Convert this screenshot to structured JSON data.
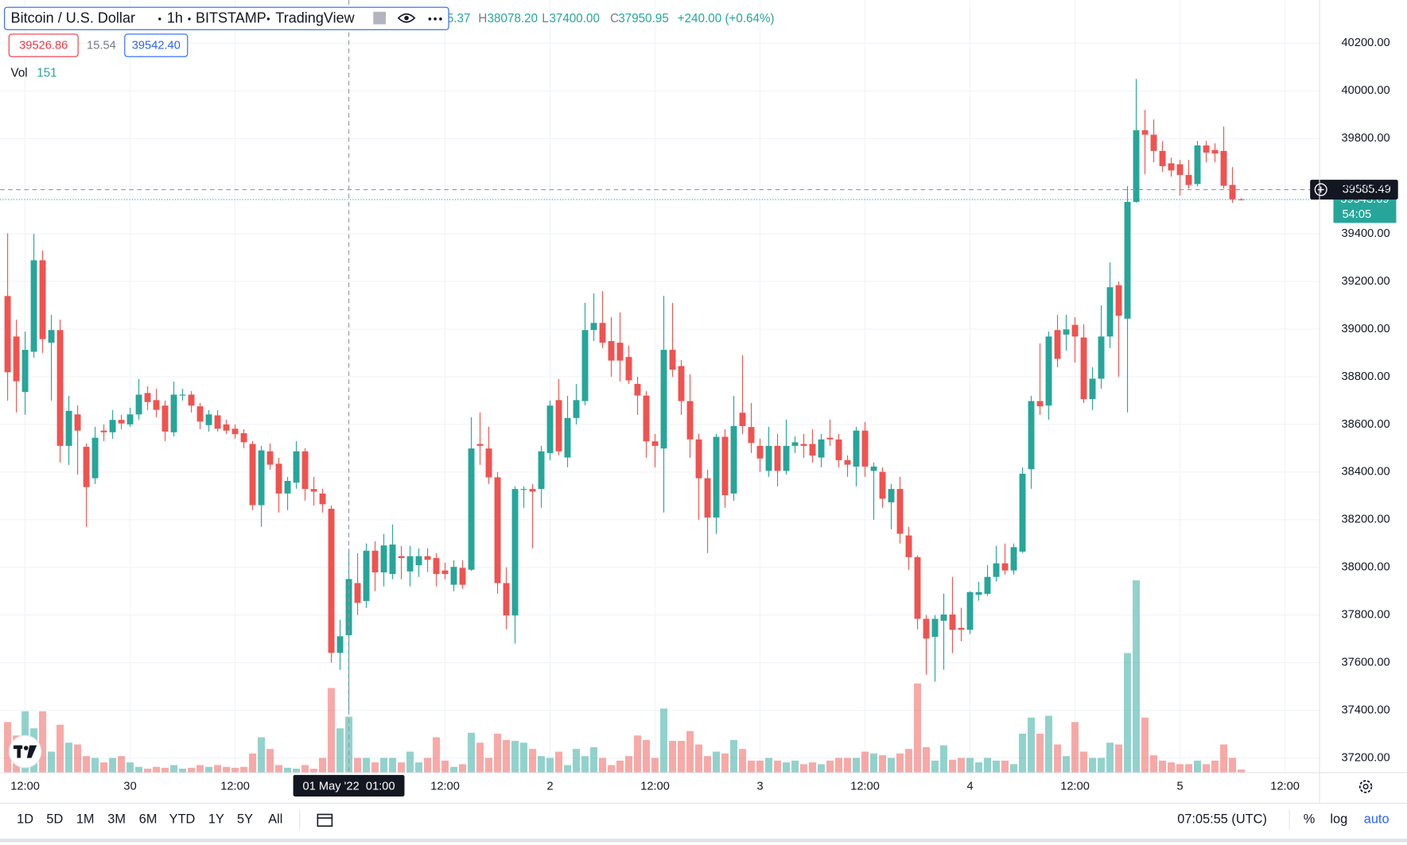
{
  "header": {
    "title": "Bitcoin / U.S. Dollar",
    "interval": "1h",
    "exchange": "BITSTAMP",
    "source": "TradingView",
    "legend": {
      "open_tail": "5.37",
      "high_key": "H",
      "high": "38078.20",
      "low_key": "L",
      "low": "37400.00",
      "close_key": "C",
      "close": "37950.95",
      "change": "+240.00 (+0.64%)"
    },
    "bid": "39526.86",
    "spread": "15.54",
    "ask": "39542.40"
  },
  "toolbar": {
    "ranges": [
      "1D",
      "5D",
      "1M",
      "3M",
      "6M",
      "YTD",
      "1Y",
      "5Y",
      "All"
    ],
    "clock": "07:05:55 (UTC)",
    "percent": "%",
    "log": "log",
    "auto": "auto"
  },
  "chart_data": {
    "type": "candlestick",
    "categories": [
      null,
      null,
      "12:00",
      null,
      null,
      null,
      null,
      null,
      null,
      null,
      null,
      null,
      null,
      null,
      "30",
      null,
      null,
      null,
      null,
      null,
      null,
      null,
      null,
      null,
      null,
      null,
      "12:00",
      null,
      null,
      null,
      null,
      null,
      null,
      null,
      null,
      null,
      null,
      null,
      null,
      "01 May '22  01:00",
      null,
      null,
      null,
      null,
      null,
      null,
      null,
      null,
      null,
      null,
      "12:00",
      null,
      null,
      null,
      null,
      null,
      null,
      null,
      null,
      null,
      null,
      null,
      "2",
      null,
      null,
      null,
      null,
      null,
      null,
      null,
      null,
      null,
      null,
      null,
      "12:00",
      null,
      null,
      null,
      null,
      null,
      null,
      null,
      null,
      null,
      null,
      null,
      "3",
      null,
      null,
      null,
      null,
      null,
      null,
      null,
      null,
      null,
      null,
      null,
      "12:00",
      null,
      null,
      null,
      null,
      null,
      null,
      null,
      null,
      null,
      null,
      null,
      "4",
      null,
      null,
      null,
      null,
      null,
      null,
      null,
      null,
      null,
      null,
      null,
      "12:00",
      null,
      null,
      null,
      null,
      null,
      null,
      null,
      null,
      null,
      null,
      null,
      "5",
      null,
      null,
      null,
      null,
      null,
      null,
      null,
      null,
      null,
      null,
      null,
      "12:00"
    ],
    "open": [
      39139,
      38969,
      38736,
      38905,
      39289,
      38943,
      38996,
      38510,
      38642,
      38506,
      38374,
      38574,
      38567,
      38619,
      38600,
      38642,
      38732,
      38702,
      38679,
      38567,
      38721,
      38725,
      38676,
      38597,
      38638,
      38600,
      38582,
      38563,
      38518,
      38261,
      38487,
      38435,
      38310,
      38356,
      38487,
      38329,
      38310,
      38246,
      37641,
      37715.37,
      37934,
      37859,
      38070,
      37979,
      37972,
      38047,
      37983,
      38009,
      38047,
      38039,
      37987,
      37927,
      37998,
      37990,
      38518,
      38499,
      38378,
      37934,
      37798,
      38325,
      38329,
      38329,
      38480,
      38702,
      38461,
      38627,
      38698,
      38996,
      39026,
      38950,
      38943,
      38883,
      38770,
      38721,
      38529,
      38499,
      38913,
      38845,
      38698,
      38537,
      38374,
      38209,
      38548,
      38310,
      38649,
      38589,
      38510,
      38405,
      38510,
      38405,
      38510,
      38518,
      38518,
      38461,
      38544,
      38537,
      38450,
      38423,
      38574,
      38405,
      38401,
      38273,
      38329,
      38134,
      38043,
      37784,
      37708,
      37776,
      37802,
      37746,
      37738,
      37885,
      37889,
      37960,
      38017,
      37987,
      38066,
      38412,
      38698,
      38679,
      38996,
      38977,
      39018,
      38965,
      38706,
      38792,
      38969,
      39184,
      39044,
      39534,
      39835,
      39816,
      39748,
      39696,
      39692,
      39647,
      39609,
      39771,
      39752,
      39748,
      39605,
      39545,
      null,
      null,
      null,
      null,
      null
    ],
    "high": [
      39402,
      39040,
      38990,
      39400,
      39330,
      39060,
      39040,
      38720,
      38680,
      38520,
      38590,
      38600,
      38660,
      38640,
      38670,
      38790,
      38760,
      38750,
      38700,
      38780,
      38750,
      38740,
      38690,
      38660,
      38660,
      38620,
      38600,
      38580,
      38530,
      38510,
      38520,
      38460,
      38380,
      38530,
      38500,
      38380,
      38330,
      38260,
      37780,
      38078.2,
      38060,
      38100,
      38110,
      38140,
      38180,
      38090,
      38090,
      38080,
      38080,
      38060,
      38020,
      38030,
      38030,
      38630,
      38650,
      38590,
      38400,
      38000,
      38340,
      38340,
      38350,
      38510,
      38700,
      38790,
      38720,
      38770,
      39110,
      39150,
      39160,
      39050,
      39070,
      38930,
      38800,
      38740,
      38560,
      39140,
      39110,
      38870,
      38810,
      38560,
      38410,
      38560,
      38580,
      38720,
      38890,
      38690,
      38540,
      38590,
      38560,
      38620,
      38550,
      38560,
      38580,
      38560,
      38620,
      38560,
      38470,
      38590,
      38610,
      38440,
      38420,
      38350,
      38380,
      38170,
      38050,
      37800,
      37800,
      37890,
      37960,
      37830,
      37900,
      37940,
      38010,
      38090,
      38100,
      38100,
      38420,
      38720,
      38940,
      38990,
      39060,
      39060,
      39050,
      39020,
      38840,
      39100,
      39280,
      39200,
      39600,
      40050,
      39920,
      39880,
      39790,
      39720,
      39710,
      39710,
      39790,
      39790,
      39780,
      39850,
      39680,
      39550,
      null,
      null,
      null,
      null,
      null
    ],
    "low": [
      38700,
      38650,
      38640,
      38880,
      38900,
      38700,
      38440,
      38430,
      38390,
      38170,
      38350,
      38530,
      38540,
      38580,
      38590,
      38620,
      38660,
      38630,
      38530,
      38550,
      38700,
      38650,
      38580,
      38570,
      38570,
      38560,
      38540,
      38500,
      38240,
      38170,
      38410,
      38230,
      38240,
      38330,
      38280,
      38260,
      38230,
      37600,
      37570,
      37400,
      37800,
      37830,
      37900,
      37920,
      37950,
      37950,
      37920,
      37960,
      37980,
      37920,
      37950,
      37900,
      37910,
      37985,
      38430,
      38350,
      37890,
      37740,
      37680,
      38250,
      38080,
      38250,
      38450,
      38470,
      38420,
      38600,
      38680,
      38950,
      38920,
      38800,
      38780,
      38770,
      38640,
      38460,
      38420,
      38230,
      38800,
      38640,
      38460,
      38200,
      38060,
      38140,
      38250,
      38280,
      38560,
      38480,
      38400,
      38380,
      38340,
      38390,
      38480,
      38460,
      38440,
      38420,
      38510,
      38420,
      38380,
      38340,
      38380,
      38200,
      38250,
      38160,
      38100,
      37990,
      37740,
      37550,
      37520,
      37570,
      37640,
      37690,
      37720,
      37860,
      37880,
      37940,
      37970,
      37970,
      38060,
      38330,
      38640,
      38620,
      38840,
      38910,
      38860,
      38690,
      38660,
      38750,
      38920,
      38800,
      38650,
      39530,
      39650,
      39700,
      39660,
      39640,
      39560,
      39590,
      39600,
      39700,
      39700,
      39590,
      39530,
      39540,
      null,
      null,
      null,
      null,
      null
    ],
    "close": [
      38819,
      38781,
      38913,
      39289,
      38958,
      38996,
      38510,
      38657,
      38574,
      38337,
      38544,
      38567,
      38619,
      38604,
      38642,
      38725,
      38694,
      38661,
      38570,
      38725,
      38725,
      38679,
      38612,
      38642,
      38582,
      38574,
      38559,
      38525,
      38261,
      38491,
      38431,
      38310,
      38363,
      38487,
      38329,
      38318,
      38265,
      37641,
      37710.95,
      37950.95,
      37851,
      38070,
      37979,
      38092,
      38096,
      38039,
      38047,
      38047,
      38032,
      37972,
      37972,
      38002,
      37927,
      38499,
      38510,
      38378,
      37934,
      37798,
      38329,
      38329,
      38318,
      38487,
      38679,
      38487,
      38627,
      38702,
      38996,
      39026,
      38943,
      38868,
      38868,
      38785,
      38721,
      38529,
      38510,
      38913,
      38830,
      38698,
      38537,
      38374,
      38209,
      38548,
      38303,
      38593,
      38593,
      38522,
      38457,
      38510,
      38405,
      38510,
      38525,
      38510,
      38469,
      38537,
      38537,
      38450,
      38431,
      38574,
      38423,
      38423,
      38288,
      38329,
      38141,
      38043,
      37784,
      37701,
      37784,
      37802,
      37738,
      37738,
      37896,
      37896,
      37960,
      38017,
      37987,
      38085,
      38393,
      38698,
      38676,
      38969,
      38875,
      38999,
      38969,
      38706,
      38792,
      38969,
      39176,
      39056,
      39534,
      39835,
      39816,
      39748,
      39684,
      39666,
      39647,
      39605,
      39771,
      39741,
      39737,
      39602,
      39545,
      39543.69,
      null,
      null,
      null,
      null,
      null
    ],
    "volume": [
      2800,
      2050,
      3400,
      2450,
      3400,
      1150,
      2650,
      1650,
      1550,
      900,
      800,
      550,
      800,
      900,
      550,
      300,
      200,
      300,
      250,
      400,
      200,
      250,
      400,
      300,
      400,
      300,
      250,
      300,
      1050,
      1950,
      1300,
      400,
      250,
      200,
      400,
      200,
      800,
      4700,
      2450,
      3100,
      800,
      800,
      550,
      800,
      800,
      550,
      1150,
      550,
      800,
      1950,
      650,
      300,
      450,
      2200,
      1650,
      800,
      2150,
      1800,
      1750,
      1650,
      1300,
      900,
      800,
      1150,
      400,
      1300,
      900,
      1400,
      800,
      400,
      650,
      900,
      2050,
      1800,
      800,
      3550,
      1750,
      1750,
      2300,
      1550,
      900,
      1150,
      1050,
      1800,
      1300,
      650,
      650,
      800,
      650,
      550,
      650,
      450,
      550,
      450,
      650,
      800,
      800,
      800,
      1150,
      1050,
      950,
      800,
      1050,
      1300,
      4950,
      1400,
      650,
      1500,
      700,
      800,
      800,
      550,
      800,
      650,
      650,
      450,
      2150,
      3050,
      2150,
      3150,
      1550,
      900,
      2800,
      1150,
      800,
      800,
      1650,
      1550,
      6650,
      10700,
      3050,
      950,
      650,
      550,
      450,
      450,
      650,
      450,
      650,
      1550,
      800,
      151,
      null,
      null,
      null,
      null,
      null
    ],
    "volume_label": "Vol",
    "up_color": "#26a69a",
    "down_color": "#ef5350",
    "ylim": [
      37140,
      40381
    ],
    "yticks": [
      {
        "value": 37200,
        "label": "37200.00"
      },
      {
        "value": 37400,
        "label": "37400.00"
      },
      {
        "value": 37600,
        "label": "37600.00"
      },
      {
        "value": 37800,
        "label": "37800.00"
      },
      {
        "value": 38000,
        "label": "38000.00"
      },
      {
        "value": 38200,
        "label": "38200.00"
      },
      {
        "value": 38400,
        "label": "38400.00"
      },
      {
        "value": 38600,
        "label": "38600.00"
      },
      {
        "value": 38800,
        "label": "38800.00"
      },
      {
        "value": 39000,
        "label": "39000.00"
      },
      {
        "value": 39200,
        "label": "39200.00"
      },
      {
        "value": 39400,
        "label": "39400.00"
      },
      {
        "value": 39600,
        "label": "39600.00"
      },
      {
        "value": 39800,
        "label": "39800.00"
      },
      {
        "value": 40000,
        "label": "40000.00"
      },
      {
        "value": 40200,
        "label": "40200.00"
      }
    ],
    "vlim": [
      0,
      11500
    ],
    "grid": true,
    "crosshair": {
      "x": "01 May '22  01:00",
      "y": 39585.49
    },
    "countdown": "54:05"
  }
}
